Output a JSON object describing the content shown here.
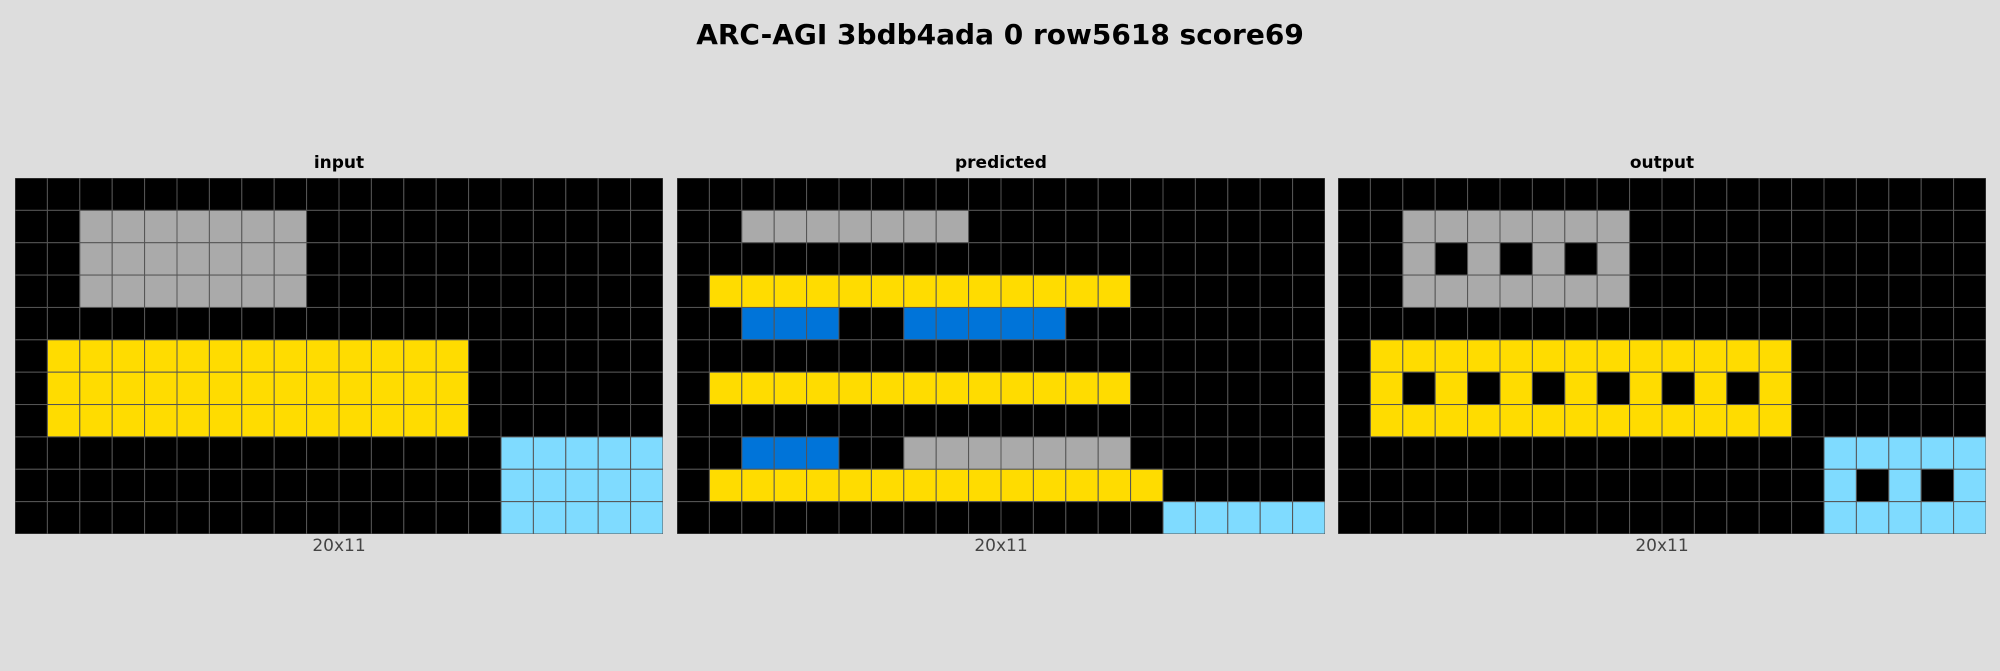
{
  "title": "ARC-AGI 3bdb4ada 0 row5618 score69",
  "colors": {
    "0": "#000000",
    "1": "#0074D9",
    "4": "#FFDC00",
    "5": "#AAAAAA",
    "8": "#7FDBFF",
    "grid_line": "#555555"
  },
  "panels": [
    {
      "label": "input",
      "dims": "20x11",
      "grid": [
        "00000000000000000000",
        "00555555500000000000",
        "00555555500000000000",
        "00555555500000000000",
        "00000000000000000000",
        "04444444444444000000",
        "04444444444444000000",
        "04444444444444000000",
        "00000000000000088888",
        "00000000000000088888",
        "00000000000000088888"
      ]
    },
    {
      "label": "predicted",
      "dims": "20x11",
      "grid": [
        "00000000000000000000",
        "00555555500000000000",
        "00000000000000000000",
        "04444444444444000000",
        "00111001111100000000",
        "00000000000000000000",
        "04444444444444000000",
        "00000000000000000000",
        "00111005555555000000",
        "04444444444444400000",
        "00000000000000088888"
      ]
    },
    {
      "label": "output",
      "dims": "20x11",
      "grid": [
        "00000000000000000000",
        "00555555500000000000",
        "00505050500000000000",
        "00555555500000000000",
        "00000000000000000000",
        "04444444444444000000",
        "04040404040404000000",
        "04444444444444000000",
        "00000000000000088888",
        "00000000000000080808",
        "00000000000000088888"
      ]
    }
  ]
}
